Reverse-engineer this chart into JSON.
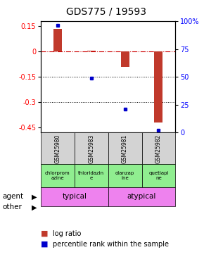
{
  "title": "GDS775 / 19593",
  "samples": [
    "GSM25980",
    "GSM25983",
    "GSM25981",
    "GSM25982"
  ],
  "log_ratios": [
    0.135,
    0.005,
    -0.09,
    -0.42
  ],
  "percentile_ranks": [
    96,
    49,
    21,
    2
  ],
  "ylim_left": [
    -0.48,
    0.18
  ],
  "ylim_right": [
    0,
    100
  ],
  "yticks_left": [
    0.15,
    0.0,
    -0.15,
    -0.3,
    -0.45
  ],
  "yticks_right": [
    100,
    75,
    50,
    25,
    0
  ],
  "agents": [
    "chlorprom\nazine",
    "thioridazin\ne",
    "olanzap\nine",
    "quetiapi\nne"
  ],
  "other_groups": [
    [
      "typical",
      2
    ],
    [
      "atypical",
      2
    ]
  ],
  "other_color": "#ee82ee",
  "agent_color": "#90ee90",
  "bar_color": "#c0392b",
  "dot_color": "#0000cc",
  "hline_color": "#cc0000",
  "dotted_line_color": "#000000",
  "gsm_bg_color": "#d3d3d3",
  "title_fontsize": 10,
  "tick_fontsize": 7,
  "legend_fontsize": 7,
  "bar_width": 0.25
}
